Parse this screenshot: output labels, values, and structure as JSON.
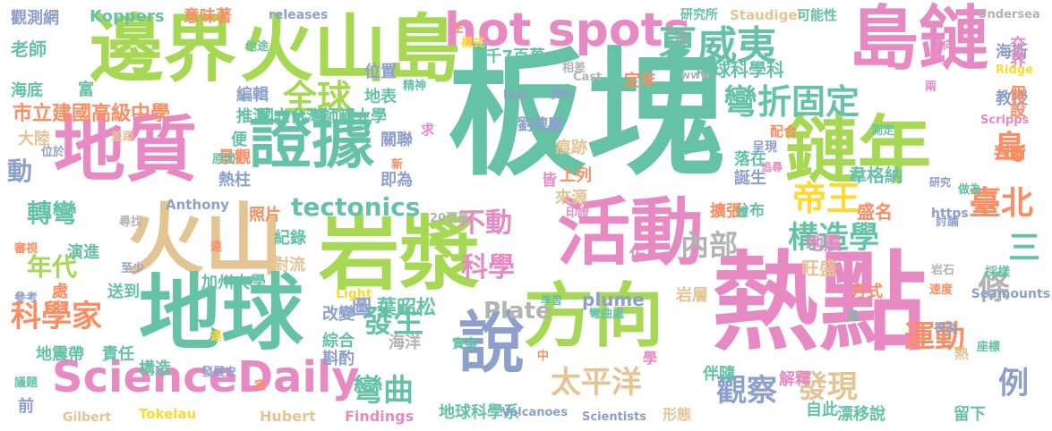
{
  "palette": {
    "teal": "#66c2a5",
    "orange": "#fc8d62",
    "blue": "#8da0cb",
    "pink": "#e78ac3",
    "green": "#a6d854",
    "yellow": "#ffd92f",
    "tan": "#e5c494",
    "gray": "#b3b3b3"
  },
  "words": [
    {
      "text": "板塊",
      "color": "teal"
    },
    {
      "text": "熱點",
      "color": "pink"
    },
    {
      "text": "邊界",
      "color": "green"
    },
    {
      "text": "火山島",
      "color": "green"
    },
    {
      "text": "島鏈",
      "color": "pink"
    },
    {
      "text": "地質",
      "color": "pink"
    },
    {
      "text": "鏈年",
      "color": "green"
    },
    {
      "text": "火山",
      "color": "tan"
    },
    {
      "text": "地球",
      "color": "teal"
    },
    {
      "text": "岩漿",
      "color": "green"
    },
    {
      "text": "活動",
      "color": "pink"
    },
    {
      "text": "方向",
      "color": "green"
    },
    {
      "text": "證據",
      "color": "teal"
    },
    {
      "text": "說",
      "color": "blue"
    },
    {
      "text": "ScienceDaily",
      "color": "pink"
    },
    {
      "text": "hot spots",
      "color": "pink"
    },
    {
      "text": "夏威夷",
      "color": "teal"
    },
    {
      "text": "全球",
      "color": "green"
    },
    {
      "text": "帝王",
      "color": "yellow"
    },
    {
      "text": "彎折固定",
      "color": "teal"
    },
    {
      "text": "構造學",
      "color": "teal"
    },
    {
      "text": "科學家",
      "color": "orange"
    },
    {
      "text": "發生",
      "color": "teal"
    },
    {
      "text": "太平洋",
      "color": "tan"
    },
    {
      "text": "觀察",
      "color": "blue"
    },
    {
      "text": "發現",
      "color": "tan"
    },
    {
      "text": "運動",
      "color": "orange"
    },
    {
      "text": "條",
      "color": "gray"
    },
    {
      "text": "島",
      "color": "orange"
    },
    {
      "text": "三",
      "color": "teal"
    },
    {
      "text": "臺北",
      "color": "orange"
    },
    {
      "text": "例",
      "color": "blue"
    },
    {
      "text": "內部",
      "color": "gray"
    },
    {
      "text": "不動",
      "color": "pink"
    },
    {
      "text": "科學",
      "color": "pink"
    },
    {
      "text": "tectonics",
      "color": "teal"
    },
    {
      "text": "彎曲",
      "color": "teal"
    },
    {
      "text": "轉彎",
      "color": "teal"
    },
    {
      "text": "年代",
      "color": "green"
    },
    {
      "text": "動",
      "color": "blue"
    },
    {
      "text": "市立建國高級中學",
      "color": "orange"
    },
    {
      "text": "地球科學科",
      "color": "teal"
    },
    {
      "text": "葉昭松",
      "color": "teal"
    },
    {
      "text": "圖",
      "color": "blue"
    },
    {
      "text": "Plate",
      "color": "gray"
    },
    {
      "text": "觀測網",
      "color": "blue"
    },
    {
      "text": "老師",
      "color": "teal"
    },
    {
      "text": "海底",
      "color": "teal"
    },
    {
      "text": "Koppers",
      "color": "teal"
    },
    {
      "text": "意味著",
      "color": "orange"
    },
    {
      "text": "releases",
      "color": "blue"
    },
    {
      "text": "研究所",
      "color": "teal"
    },
    {
      "text": "Staudigel",
      "color": "tan"
    },
    {
      "text": "可能性",
      "color": "teal"
    },
    {
      "text": "Undersea",
      "color": "gray"
    },
    {
      "text": "海斯",
      "color": "blue"
    },
    {
      "text": "交界",
      "color": "pink"
    },
    {
      "text": "Ridge",
      "color": "yellow"
    },
    {
      "text": "教授",
      "color": "blue"
    },
    {
      "text": "假設",
      "color": "orange"
    },
    {
      "text": "判斷",
      "color": "orange"
    },
    {
      "text": "4千7百萬",
      "color": "teal"
    },
    {
      "text": "模式",
      "color": "yellow"
    },
    {
      "text": "位置",
      "color": "blue"
    },
    {
      "text": "地表",
      "color": "teal"
    },
    {
      "text": "編輯",
      "color": "blue"
    },
    {
      "text": "推測",
      "color": "teal"
    },
    {
      "text": "國立台灣師範大學",
      "color": "teal"
    },
    {
      "text": "劉德慶",
      "color": "blue"
    },
    {
      "text": "關聯",
      "color": "blue"
    },
    {
      "text": "痕跡",
      "color": "tan"
    },
    {
      "text": "上列",
      "color": "orange"
    },
    {
      "text": "皆",
      "color": "pink"
    },
    {
      "text": "即為",
      "color": "blue"
    },
    {
      "text": "來源",
      "color": "tan"
    },
    {
      "text": "落在",
      "color": "teal"
    },
    {
      "text": "誕生",
      "color": "blue"
    },
    {
      "text": "韋格納",
      "color": "teal"
    },
    {
      "text": "盛名",
      "color": "orange"
    },
    {
      "text": "地震",
      "color": "pink"
    },
    {
      "text": "旺盛",
      "color": "tan"
    },
    {
      "text": "方式",
      "color": "orange"
    },
    {
      "text": "分布",
      "color": "teal"
    },
    {
      "text": "擴張",
      "color": "orange"
    },
    {
      "text": "Seamounts",
      "color": "blue"
    },
    {
      "text": "plume",
      "color": "blue"
    },
    {
      "text": "岩層",
      "color": "tan"
    },
    {
      "text": "伴隨",
      "color": "teal"
    },
    {
      "text": "漂移說",
      "color": "teal"
    },
    {
      "text": "解釋",
      "color": "pink"
    },
    {
      "text": "自此",
      "color": "teal"
    },
    {
      "text": "留下",
      "color": "teal"
    },
    {
      "text": "地球科學系",
      "color": "teal"
    },
    {
      "text": "形態",
      "color": "tan"
    },
    {
      "text": "Scientists",
      "color": "blue"
    },
    {
      "text": "Findings",
      "color": "pink"
    },
    {
      "text": "Hubert",
      "color": "tan"
    },
    {
      "text": "Gilbert",
      "color": "tan"
    },
    {
      "text": "Tokelau",
      "color": "yellow"
    },
    {
      "text": "加州大學",
      "color": "teal"
    },
    {
      "text": "對流",
      "color": "tan"
    },
    {
      "text": "紀錄",
      "color": "teal"
    },
    {
      "text": "照片",
      "color": "orange"
    },
    {
      "text": "熱柱",
      "color": "blue"
    },
    {
      "text": "景觀",
      "color": "orange"
    },
    {
      "text": "送到",
      "color": "teal"
    },
    {
      "text": "演進",
      "color": "teal"
    },
    {
      "text": "地震帶",
      "color": "teal"
    },
    {
      "text": "責任",
      "color": "teal"
    },
    {
      "text": "構造",
      "color": "teal"
    },
    {
      "text": "改變",
      "color": "blue"
    },
    {
      "text": "綜合",
      "color": "teal"
    },
    {
      "text": "斟酌",
      "color": "blue"
    },
    {
      "text": "海洋",
      "color": "gray"
    },
    {
      "text": "Volcanoes",
      "color": "blue"
    },
    {
      "text": "Light",
      "color": "yellow"
    },
    {
      "text": "Anthony",
      "color": "blue"
    },
    {
      "text": "20百萬",
      "color": "gray"
    },
    {
      "text": "大陸",
      "color": "tan"
    },
    {
      "text": "便",
      "color": "teal"
    },
    {
      "text": "富",
      "color": "teal"
    },
    {
      "text": "Cast",
      "color": "gray"
    },
    {
      "text": "定年",
      "color": "orange"
    },
    {
      "text": "外",
      "color": "teal"
    },
    {
      "text": "www",
      "color": "gray"
    },
    {
      "text": "Scripps",
      "color": "pink"
    },
    {
      "text": "配合",
      "color": "orange"
    },
    {
      "text": "呈現",
      "color": "blue"
    },
    {
      "text": "研究",
      "color": "blue"
    },
    {
      "text": "https",
      "color": "blue"
    },
    {
      "text": "做為",
      "color": "teal"
    },
    {
      "text": "討論",
      "color": "blue"
    },
    {
      "text": "採樣",
      "color": "teal"
    },
    {
      "text": "前",
      "color": "blue"
    },
    {
      "text": "處",
      "color": "orange"
    },
    {
      "text": "熱",
      "color": "tan"
    },
    {
      "text": "座標",
      "color": "teal"
    },
    {
      "text": "議題",
      "color": "teal"
    },
    {
      "text": "參考",
      "color": "blue"
    },
    {
      "text": "審視",
      "color": "orange"
    },
    {
      "text": "尋找",
      "color": "gray"
    },
    {
      "text": "差距",
      "color": "tan"
    },
    {
      "text": "位於",
      "color": "blue"
    },
    {
      "text": "原因",
      "color": "teal"
    },
    {
      "text": "至少",
      "color": "blue"
    },
    {
      "text": "發展史",
      "color": "blue"
    },
    {
      "text": "他途",
      "color": "teal"
    },
    {
      "text": "精神",
      "color": "teal"
    },
    {
      "text": "求",
      "color": "pink"
    },
    {
      "text": "htm",
      "color": "blue"
    },
    {
      "text": "資料",
      "color": "blue"
    },
    {
      "text": "相差",
      "color": "gray"
    },
    {
      "text": "正",
      "color": "orange"
    },
    {
      "text": "印證",
      "color": "pink"
    },
    {
      "text": "遠",
      "color": "orange"
    },
    {
      "text": "達",
      "color": "yellow"
    },
    {
      "text": "中",
      "color": "orange"
    },
    {
      "text": "學",
      "color": "pink"
    },
    {
      "text": "實事",
      "color": "teal"
    },
    {
      "text": "彎曲處",
      "color": "teal"
    },
    {
      "text": "學習",
      "color": "teal"
    },
    {
      "text": "追尋",
      "color": "pink"
    },
    {
      "text": "測定",
      "color": "teal"
    },
    {
      "text": "岩石",
      "color": "gray"
    },
    {
      "text": "速度",
      "color": "orange"
    },
    {
      "text": "視為",
      "color": "blue"
    },
    {
      "text": "兩",
      "color": "pink"
    },
    {
      "text": "轉向",
      "color": "pink"
    },
    {
      "text": "新",
      "color": "orange"
    },
    {
      "text": "應",
      "color": "teal"
    },
    {
      "text": "佐",
      "color": "pink"
    },
    {
      "text": "見",
      "color": "teal"
    },
    {
      "text": "定",
      "color": "orange"
    }
  ]
}
